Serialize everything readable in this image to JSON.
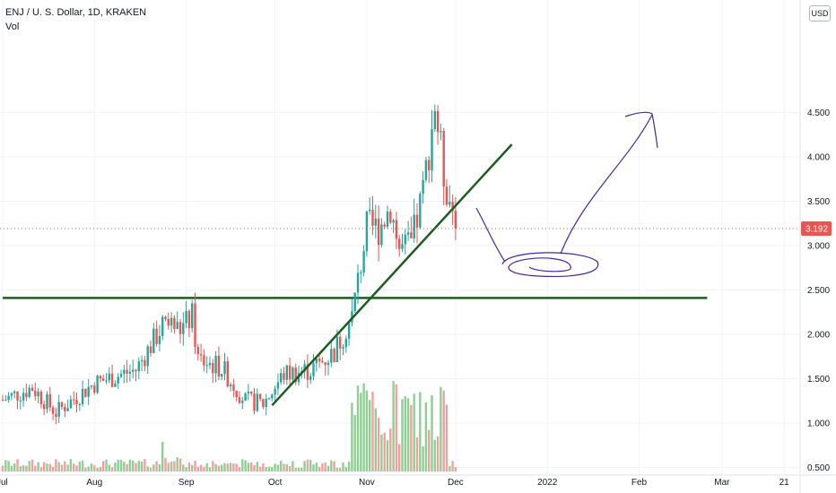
{
  "header": {
    "title": "ENJ / U. S. Dollar, 1D, KRAKEN",
    "volume_label": "Vol",
    "currency": "USD"
  },
  "colors": {
    "up": "#26a69a",
    "down": "#ef5350",
    "vol_up": "#8fcf94",
    "vol_down": "#f0a0a0",
    "trendline": "#1b5e20",
    "drawing": "#4527a0",
    "price_tag": "#ef5350"
  },
  "chart_data": {
    "type": "candlestick",
    "y_axis": {
      "ticks": [
        "0.500",
        "1.000",
        "1.500",
        "2.000",
        "2.500",
        "3.000",
        "3.500",
        "4.000",
        "4.500"
      ],
      "tick_values": [
        0.5,
        1.0,
        1.5,
        2.0,
        2.5,
        3.0,
        3.5,
        4.0,
        4.5
      ]
    },
    "x_axis": {
      "ticks": [
        "Jul",
        "Aug",
        "Sep",
        "Oct",
        "Nov",
        "Dec",
        "2022",
        "Feb",
        "Mar",
        "21"
      ],
      "tick_days": [
        0,
        31,
        62,
        92,
        123,
        153,
        184,
        215,
        243,
        264
      ]
    },
    "last_price": "3.192",
    "last_price_value": 3.192,
    "price_segments": [
      {
        "day": 0,
        "price": 1.26
      },
      {
        "day": 10,
        "price": 1.4
      },
      {
        "day": 18,
        "price": 1.12
      },
      {
        "day": 31,
        "price": 1.45
      },
      {
        "day": 45,
        "price": 1.6
      },
      {
        "day": 55,
        "price": 2.15
      },
      {
        "day": 60,
        "price": 2.05
      },
      {
        "day": 64,
        "price": 2.2
      },
      {
        "day": 66,
        "price": 1.72
      },
      {
        "day": 74,
        "price": 1.62
      },
      {
        "day": 82,
        "price": 1.25
      },
      {
        "day": 88,
        "price": 1.22
      },
      {
        "day": 95,
        "price": 1.55
      },
      {
        "day": 104,
        "price": 1.6
      },
      {
        "day": 112,
        "price": 1.8
      },
      {
        "day": 118,
        "price": 2.2
      },
      {
        "day": 123,
        "price": 3.2
      },
      {
        "day": 127,
        "price": 3.2
      },
      {
        "day": 131,
        "price": 3.45
      },
      {
        "day": 134,
        "price": 2.95
      },
      {
        "day": 138,
        "price": 3.0
      },
      {
        "day": 142,
        "price": 3.6
      },
      {
        "day": 146,
        "price": 4.6
      },
      {
        "day": 149,
        "price": 3.8
      },
      {
        "day": 153,
        "price": 3.25
      }
    ],
    "annotations": {
      "horizontal_line": {
        "price": 2.41,
        "from_day": 0,
        "to_day": 238
      },
      "trendline": {
        "from": {
          "day": 91,
          "price": 1.2
        },
        "to": {
          "day": 172,
          "price": 4.14
        }
      }
    }
  }
}
